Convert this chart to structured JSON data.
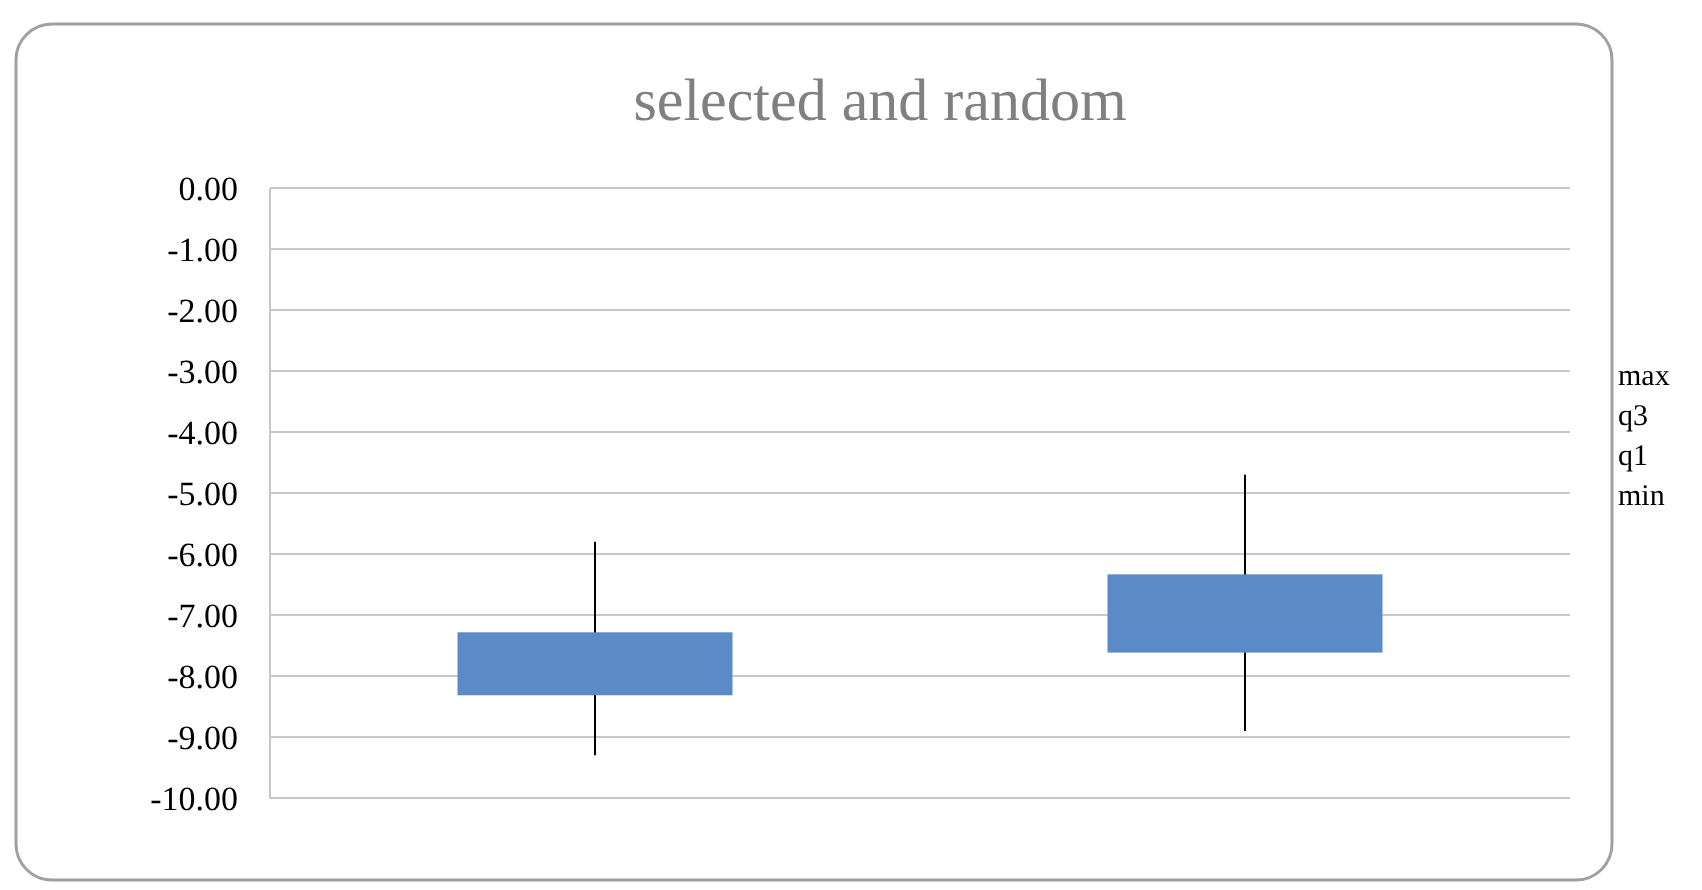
{
  "chart_data": {
    "type": "candlestick",
    "title": "selected and random",
    "categories": [
      null,
      null
    ],
    "ohlc": [
      [
        -8.3,
        -5.8,
        -9.3,
        -7.3
      ],
      [
        -7.6,
        -4.7,
        -8.9,
        -6.35
      ]
    ],
    "color": "#5b8bc6",
    "ylim": [
      -10,
      0
    ],
    "yticks": [
      {
        "value": 0,
        "label": "0.00"
      },
      {
        "value": -1,
        "label": "-1.00"
      },
      {
        "value": -2,
        "label": "-2.00"
      },
      {
        "value": -3,
        "label": "-3.00"
      },
      {
        "value": -4,
        "label": "-4.00"
      },
      {
        "value": -5,
        "label": "-5.00"
      },
      {
        "value": -6,
        "label": "-6.00"
      },
      {
        "value": -7,
        "label": "-7.00"
      },
      {
        "value": -8,
        "label": "-8.00"
      },
      {
        "value": -9,
        "label": "-9.00"
      },
      {
        "value": -10,
        "label": "-10.00"
      }
    ],
    "grid": "y",
    "annotations": [
      "max",
      "q3",
      "q1",
      "min"
    ]
  }
}
